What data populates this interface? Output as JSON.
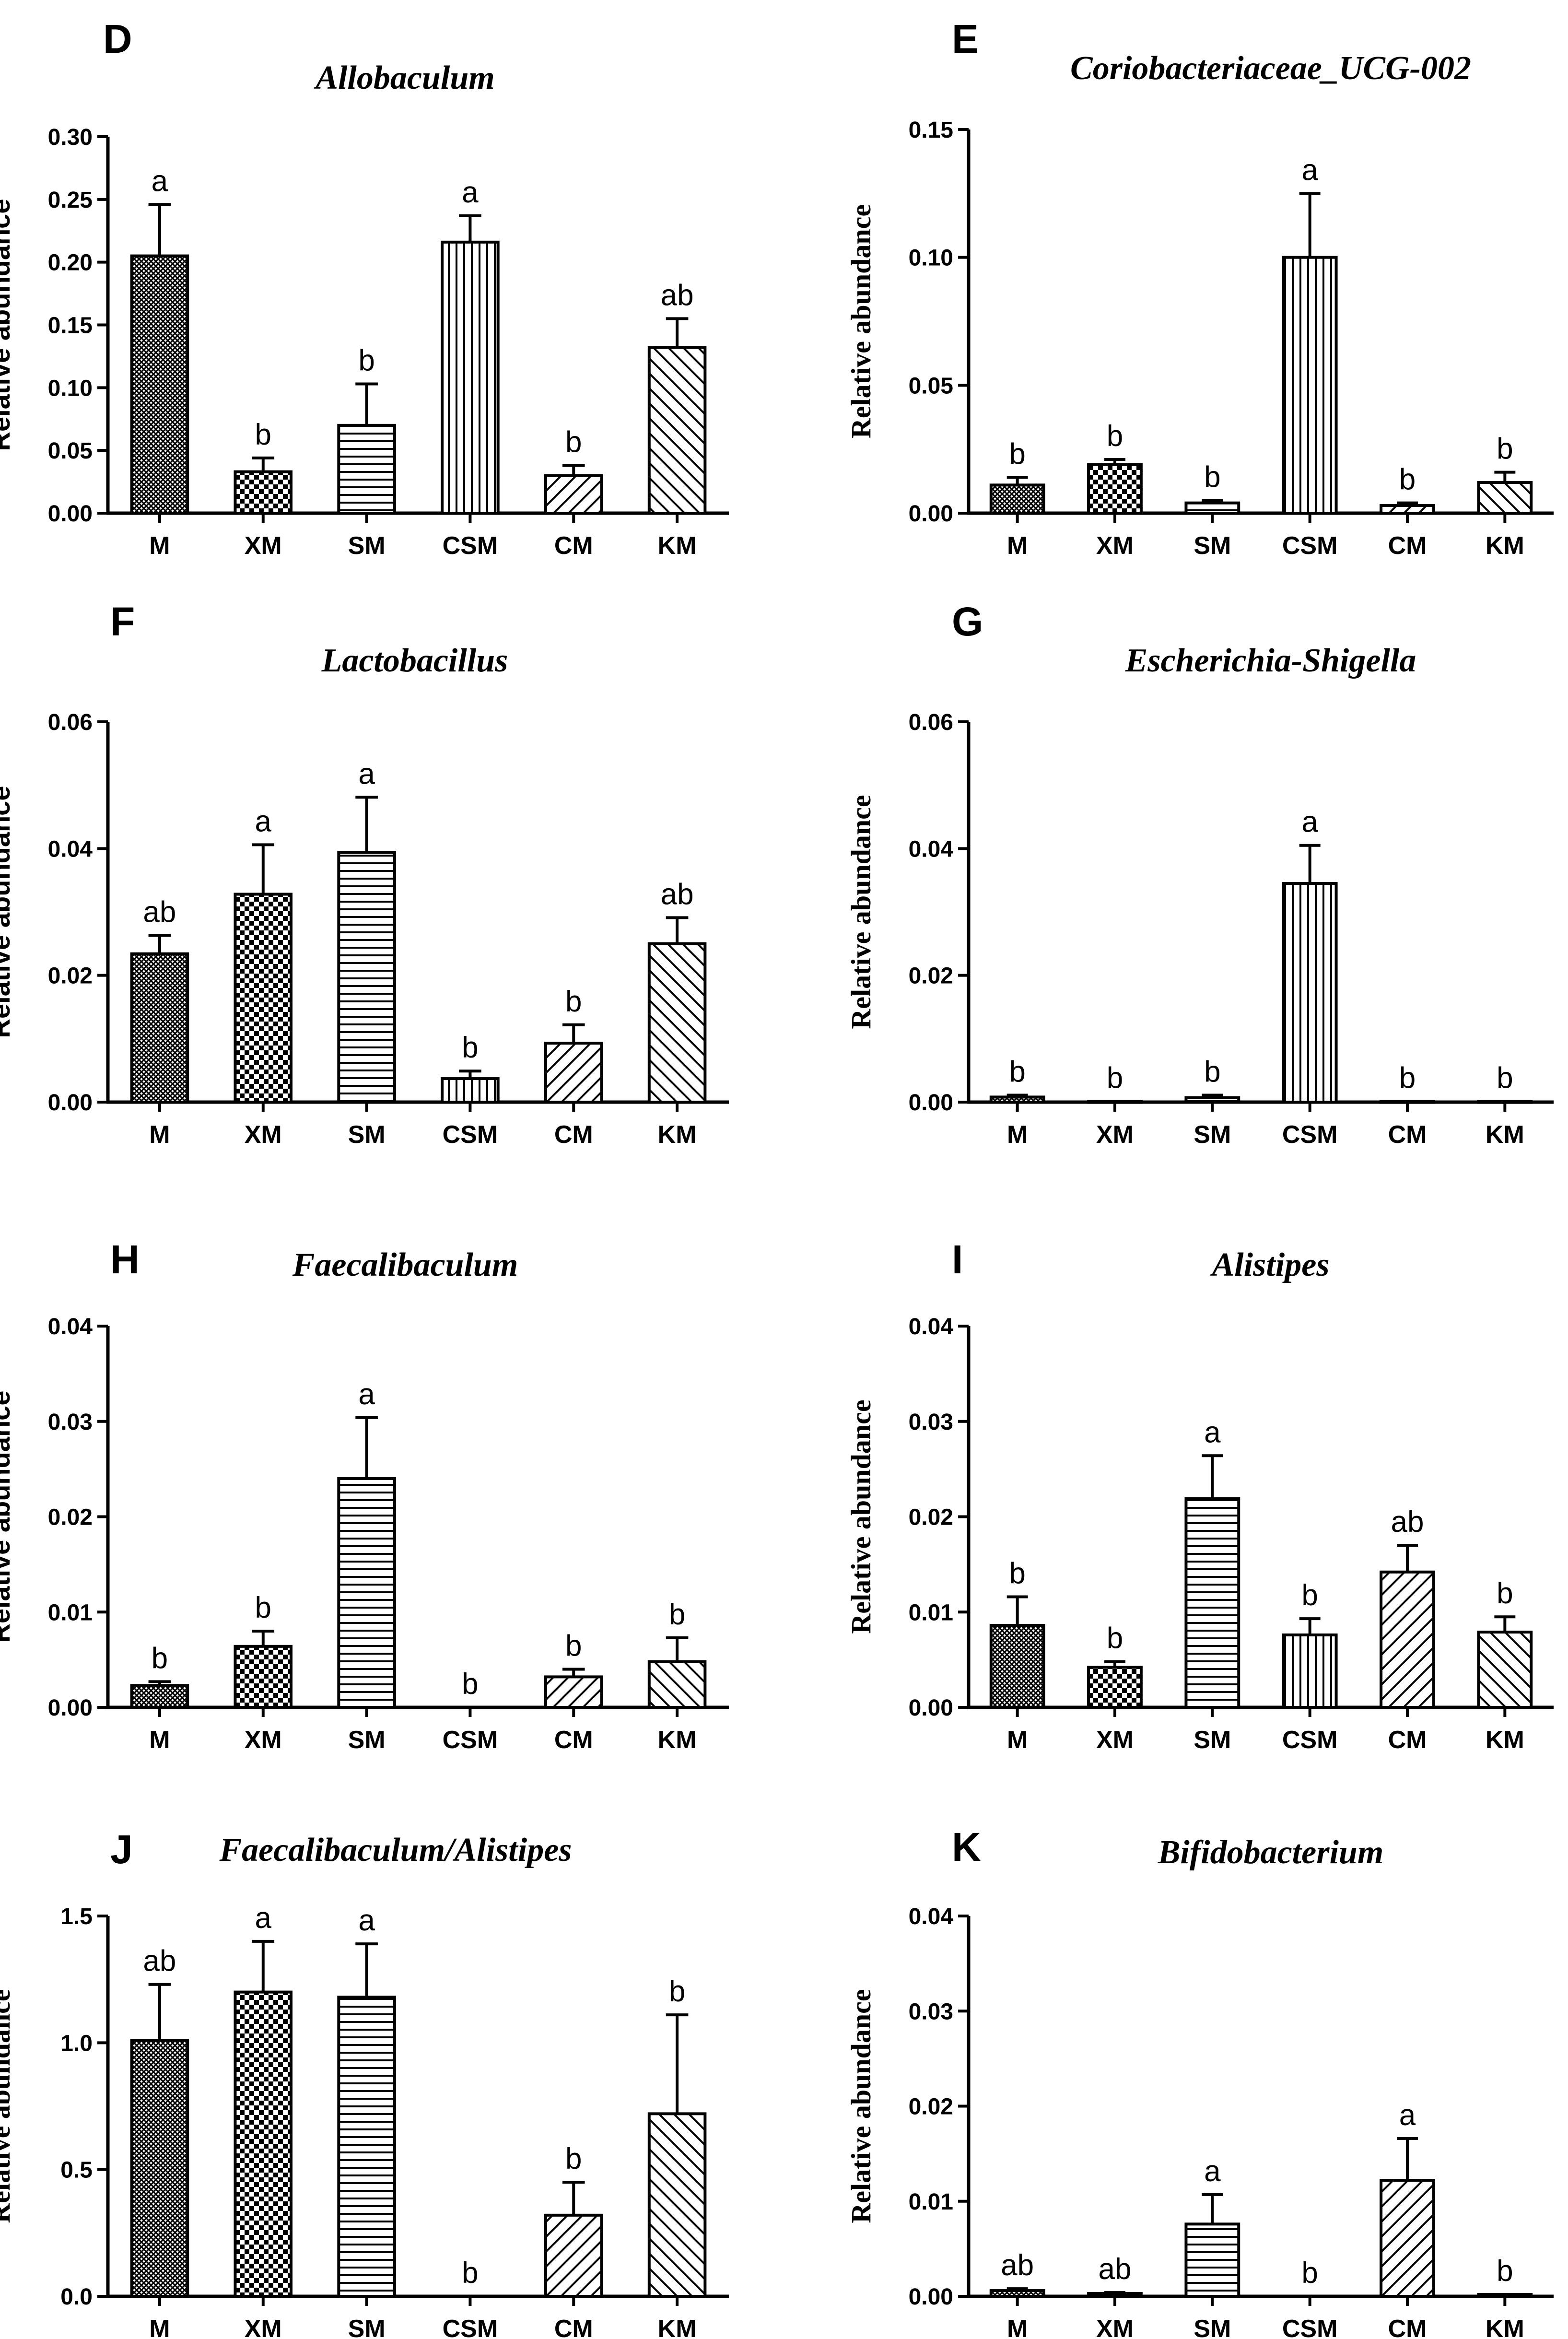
{
  "figure": {
    "patterns": {
      "M": "fine-crosshatch",
      "XM": "checkerboard",
      "SM": "horizontal-lines",
      "CSM": "vertical-lines",
      "CM": "diagonal-lines",
      "KM": "back-diagonal-lines"
    },
    "bar_color": "#000000",
    "background": "#ffffff"
  },
  "chart_data": [
    {
      "panel": "D",
      "type": "bar",
      "title": "Allobaculum",
      "ylabel": "Relative abundance",
      "ylabel_style": "sans",
      "categories": [
        "M",
        "XM",
        "SM",
        "CSM",
        "CM",
        "KM"
      ],
      "values": [
        0.205,
        0.033,
        0.07,
        0.216,
        0.03,
        0.132
      ],
      "errors": [
        0.041,
        0.011,
        0.033,
        0.021,
        0.008,
        0.023
      ],
      "sig": [
        "a",
        "b",
        "b",
        "a",
        "b",
        "ab"
      ],
      "ylim": [
        0,
        0.3
      ],
      "yticks": [
        "0.00",
        "0.05",
        "0.10",
        "0.15",
        "0.20",
        "0.25",
        "0.30"
      ]
    },
    {
      "panel": "E",
      "type": "bar",
      "title": "Coriobacteriaceae_UCG-002",
      "ylabel": "Relative abundance",
      "ylabel_style": "serif",
      "categories": [
        "M",
        "XM",
        "SM",
        "CSM",
        "CM",
        "KM"
      ],
      "values": [
        0.011,
        0.019,
        0.004,
        0.1,
        0.003,
        0.012
      ],
      "errors": [
        0.003,
        0.002,
        0.001,
        0.025,
        0.001,
        0.004
      ],
      "sig": [
        "b",
        "b",
        "b",
        "a",
        "b",
        "b"
      ],
      "ylim": [
        0,
        0.15
      ],
      "yticks": [
        "0.00",
        "0.05",
        "0.10",
        "0.15"
      ]
    },
    {
      "panel": "F",
      "type": "bar",
      "title": "Lactobacillus",
      "ylabel": "Relative abundance",
      "ylabel_style": "sans",
      "categories": [
        "M",
        "XM",
        "SM",
        "CSM",
        "CM",
        "KM"
      ],
      "values": [
        0.0234,
        0.0328,
        0.0394,
        0.0037,
        0.0093,
        0.025
      ],
      "errors": [
        0.0029,
        0.0078,
        0.0087,
        0.0012,
        0.0029,
        0.0041
      ],
      "sig": [
        "ab",
        "a",
        "a",
        "b",
        "b",
        "ab"
      ],
      "ylim": [
        0,
        0.06
      ],
      "yticks": [
        "0.00",
        "0.02",
        "0.04",
        "0.06"
      ]
    },
    {
      "panel": "G",
      "type": "bar",
      "title": "Escherichia-Shigella",
      "ylabel": "Relative abundance",
      "ylabel_style": "serif",
      "categories": [
        "M",
        "XM",
        "SM",
        "CSM",
        "CM",
        "KM"
      ],
      "values": [
        0.0008,
        0.0001,
        0.0007,
        0.0345,
        0.0001,
        0.0001
      ],
      "errors": [
        0.0003,
        0.0,
        0.0004,
        0.006,
        0.0,
        0.0
      ],
      "sig": [
        "b",
        "b",
        "b",
        "a",
        "b",
        "b"
      ],
      "ylim": [
        0,
        0.06
      ],
      "yticks": [
        "0.00",
        "0.02",
        "0.04",
        "0.06"
      ]
    },
    {
      "panel": "H",
      "type": "bar",
      "title": "Faecalibaculum",
      "ylabel": "Relative abundance",
      "ylabel_style": "sans",
      "categories": [
        "M",
        "XM",
        "SM",
        "CSM",
        "CM",
        "KM"
      ],
      "values": [
        0.0023,
        0.0064,
        0.024,
        0.0,
        0.0032,
        0.0048
      ],
      "errors": [
        0.0004,
        0.0016,
        0.0064,
        0.0,
        0.0008,
        0.0025
      ],
      "sig": [
        "b",
        "b",
        "a",
        "b",
        "b",
        "b"
      ],
      "ylim": [
        0,
        0.04
      ],
      "yticks": [
        "0.00",
        "0.01",
        "0.02",
        "0.03",
        "0.04"
      ]
    },
    {
      "panel": "I",
      "type": "bar",
      "title": "Alistipes",
      "ylabel": "Relative abundance",
      "ylabel_style": "serif",
      "categories": [
        "M",
        "XM",
        "SM",
        "CSM",
        "CM",
        "KM"
      ],
      "values": [
        0.0086,
        0.0042,
        0.0219,
        0.0076,
        0.0142,
        0.0079
      ],
      "errors": [
        0.003,
        0.0006,
        0.0045,
        0.0017,
        0.0028,
        0.0016
      ],
      "sig": [
        "b",
        "b",
        "a",
        "b",
        "ab",
        "b"
      ],
      "ylim": [
        0,
        0.04
      ],
      "yticks": [
        "0.00",
        "0.01",
        "0.02",
        "0.03",
        "0.04"
      ]
    },
    {
      "panel": "J",
      "type": "bar",
      "title": "Faecalibaculum/Alistipes",
      "ylabel": "Relative abundance",
      "ylabel_style": "serif",
      "categories": [
        "M",
        "XM",
        "SM",
        "CSM",
        "CM",
        "KM"
      ],
      "values": [
        1.01,
        1.2,
        1.18,
        0.0,
        0.32,
        0.72
      ],
      "errors": [
        0.22,
        0.2,
        0.21,
        0.0,
        0.13,
        0.39
      ],
      "sig": [
        "ab",
        "a",
        "a",
        "b",
        "b",
        "b"
      ],
      "ylim": [
        0,
        1.5
      ],
      "yticks": [
        "0.0",
        "0.5",
        "1.0",
        "1.5"
      ]
    },
    {
      "panel": "K",
      "type": "bar",
      "title": "Bifidobacterium",
      "ylabel": "Relative abundance",
      "ylabel_style": "serif",
      "categories": [
        "M",
        "XM",
        "SM",
        "CSM",
        "CM",
        "KM"
      ],
      "values": [
        0.0006,
        0.0003,
        0.0076,
        0.0,
        0.0122,
        0.0002
      ],
      "errors": [
        0.0002,
        0.0001,
        0.0031,
        0.0,
        0.0044,
        0.0
      ],
      "sig": [
        "ab",
        "ab",
        "a",
        "b",
        "a",
        "b"
      ],
      "ylim": [
        0,
        0.04
      ],
      "yticks": [
        "0.00",
        "0.01",
        "0.02",
        "0.03",
        "0.04"
      ]
    }
  ]
}
